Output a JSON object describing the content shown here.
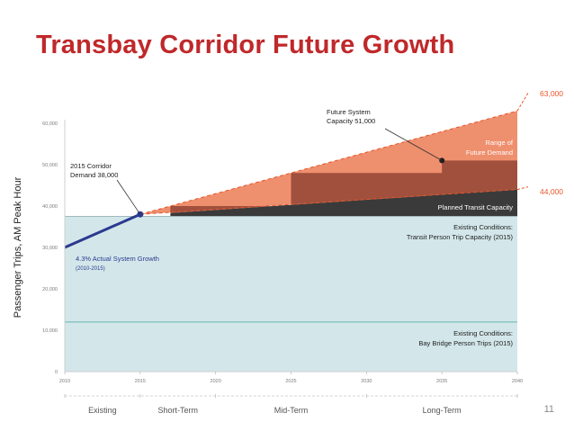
{
  "slide": {
    "title": "Transbay Corridor Future Growth",
    "page_number": "11"
  },
  "colors": {
    "title": "#c0282a",
    "existing_fill": "#d3e7ea",
    "bay_bridge_line": "#8fc8c4",
    "range_fill": "#ee8f6e",
    "range_dark": "#a0503d",
    "planned_capacity": "#3a3a3a",
    "growth_line": "#2b3a8f",
    "highlight_label": "#e8562a"
  },
  "chart_data": {
    "type": "area",
    "ylabel": "Passenger Trips, AM Peak Hour",
    "xlabel": "",
    "x_ticks": [
      "2010",
      "2015",
      "2020",
      "2025",
      "2030",
      "2035",
      "2040"
    ],
    "y_ticks": [
      "0",
      "10,000",
      "20,000",
      "30,000",
      "40,000",
      "50,000",
      "60,000"
    ],
    "xlim": [
      2010,
      2040
    ],
    "ylim": [
      0,
      60000
    ],
    "series": [
      {
        "name": "Existing Conditions: Transit Person Trip Capacity (2015)",
        "points": [
          [
            2010,
            37500
          ],
          [
            2040,
            37500
          ]
        ]
      },
      {
        "name": "Existing Conditions: Bay Bridge Person Trips (2015)",
        "points": [
          [
            2010,
            12000
          ],
          [
            2040,
            12000
          ]
        ]
      },
      {
        "name": "4.3% Actual System Growth",
        "points": [
          [
            2010,
            30000
          ],
          [
            2015,
            38000
          ]
        ]
      },
      {
        "name": "Range of Future Demand",
        "upper": [
          [
            2015,
            38000
          ],
          [
            2040,
            63000
          ]
        ],
        "lower": [
          [
            2015,
            38000
          ],
          [
            2040,
            44000
          ]
        ]
      },
      {
        "name": "Planned Transit Capacity",
        "steps": [
          [
            2017,
            40000
          ],
          [
            2025,
            48000
          ],
          [
            2035,
            51000
          ]
        ],
        "lower": [
          [
            2017,
            38300
          ],
          [
            2040,
            44000
          ]
        ]
      }
    ],
    "annotations": {
      "corridor_demand_line1": "2015 Corridor",
      "corridor_demand_line2": "Demand 38,000",
      "future_capacity_line1": "Future System",
      "future_capacity_line2": "Capacity 51,000",
      "range_line1": "Range of",
      "range_line2": "Future Demand",
      "planned_capacity": "Planned Transit Capacity",
      "existing_transit_line1": "Existing Conditions:",
      "existing_transit_line2": "Transit Person Trip Capacity (2015)",
      "existing_bridge_line1": "Existing Conditions:",
      "existing_bridge_line2": "Bay Bridge Person Trips (2015)",
      "growth_line1": "4.3% Actual System Growth",
      "growth_line2": "(2010-2015)",
      "high_value": "63,000",
      "low_value": "44,000"
    },
    "phases": [
      {
        "label": "Existing",
        "from": 2010,
        "to": 2015
      },
      {
        "label": "Short-Term",
        "from": 2015,
        "to": 2020
      },
      {
        "label": "Mid-Term",
        "from": 2020,
        "to": 2030
      },
      {
        "label": "Long-Term",
        "from": 2030,
        "to": 2040
      }
    ],
    "points": [
      {
        "name": "2015 Corridor Demand",
        "x": 2015,
        "y": 38000
      },
      {
        "name": "Future System Capacity",
        "x": 2035,
        "y": 51000
      }
    ]
  }
}
